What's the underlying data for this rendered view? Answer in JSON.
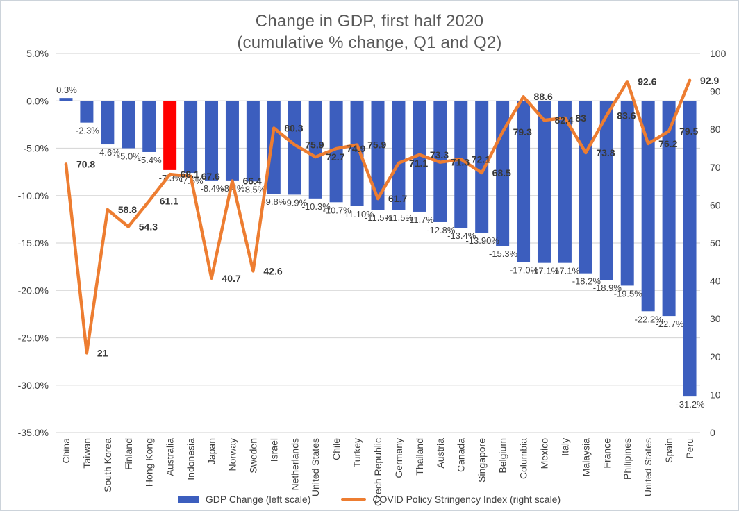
{
  "colors": {
    "bar_blue": "#3C5EBE",
    "bar_highlight_red": "#FF0000",
    "line_orange": "#ED7D31",
    "grid_gray": "#D9D9D9",
    "axis_text": "#404040",
    "title_text": "#595959"
  },
  "chart_data": {
    "type": "combo",
    "title": "Change in GDP, first half 2020",
    "subtitle": "(cumulative % change, Q1 and Q2)",
    "legend_position": "bottom",
    "grid": true,
    "categories": [
      "China",
      "Taiwan",
      "South Korea",
      "Finland",
      "Hong Kong",
      "Australia",
      "Indonesia",
      "Japan",
      "Norway",
      "Sweden",
      "Israel",
      "Netherlands",
      "United States",
      "Chile",
      "Turkey",
      "Czech Republic",
      "Germany",
      "Thailand",
      "Austria",
      "Canada",
      "Singapore",
      "Belgium",
      "Columbia",
      "Mexico",
      "Italy",
      "Malaysia",
      "France",
      "Philipines",
      "United States",
      "Spain",
      "Peru"
    ],
    "series": [
      {
        "name": "GDP Change (left scale)",
        "type": "bar",
        "axis": "left",
        "color": "#3C5EBE",
        "highlight": {
          "index": 5,
          "color": "#FF0000"
        },
        "values": [
          0.3,
          -2.3,
          -4.6,
          -5.0,
          -5.4,
          -7.3,
          -7.6,
          -8.4,
          -8.4,
          -8.5,
          -9.8,
          -9.9,
          -10.3,
          -10.7,
          -11.1,
          -11.5,
          -11.5,
          -11.7,
          -12.8,
          -13.4,
          -13.9,
          -15.3,
          -17.0,
          -17.1,
          -17.1,
          -18.2,
          -18.9,
          -19.5,
          -22.2,
          -22.7,
          -31.2
        ],
        "labels": [
          "0.3%",
          "-2.3%",
          "-4.6%",
          "-5.0%",
          "-5.4%",
          "-7.3%",
          "-7.6%",
          "-8.4%",
          "-8.4%",
          "-8.5%",
          "-9.8%",
          "-9.9%",
          "-10.3%",
          "-10.7%",
          "-11.10%",
          "-11.5%",
          "-11.5%",
          "-11.7%",
          "-12.8%",
          "-13.4%",
          "-13.90%",
          "-15.3%",
          "-17.0%",
          "-17.1%",
          "-17.1%",
          "-18.2%",
          "-18.9%",
          "-19.5%",
          "-22.2%",
          "-22.7%",
          "-31.2%"
        ]
      },
      {
        "name": "COVID Policy Stringency Index (right scale)",
        "type": "line",
        "axis": "right",
        "color": "#ED7D31",
        "values": [
          70.8,
          21,
          58.8,
          54.3,
          61.1,
          68.1,
          67.6,
          40.7,
          66.4,
          42.6,
          80.3,
          75.9,
          72.7,
          74.9,
          75.9,
          61.7,
          71.1,
          73.3,
          71.3,
          72.1,
          68.5,
          79.3,
          88.6,
          82.4,
          83,
          73.8,
          83.6,
          92.6,
          76.2,
          79.5,
          92.9
        ],
        "labels": [
          "70.8",
          "21",
          "58.8",
          "54.3",
          "61.1",
          "68.1",
          "67.6",
          "40.7",
          "66.4",
          "42.6",
          "80.3",
          "75.9",
          "72.7",
          "74.9",
          "75.9",
          "61.7",
          "71.1",
          "73.3",
          "71.3",
          "72.1",
          "68.5",
          "79.3",
          "88.6",
          "82.4",
          "83",
          "73.8",
          "83.6",
          "92.6",
          "76.2",
          "79.5",
          "92.9"
        ]
      }
    ],
    "left_axis": {
      "range": [
        -35,
        5
      ],
      "tick_values": [
        5,
        0,
        -5,
        -10,
        -15,
        -20,
        -25,
        -30,
        -35
      ],
      "tick_labels": [
        "5.0%",
        "0.0%",
        "-5.0%",
        "-10.0%",
        "-15.0%",
        "-20.0%",
        "-25.0%",
        "-30.0%",
        "-35.0%"
      ]
    },
    "right_axis": {
      "range": [
        0,
        100
      ],
      "tick_values": [
        100,
        90,
        80,
        70,
        60,
        50,
        40,
        30,
        20,
        10,
        0
      ],
      "tick_labels": [
        "100",
        "90",
        "80",
        "70",
        "60",
        "50",
        "40",
        "30",
        "20",
        "10",
        "0"
      ]
    }
  }
}
